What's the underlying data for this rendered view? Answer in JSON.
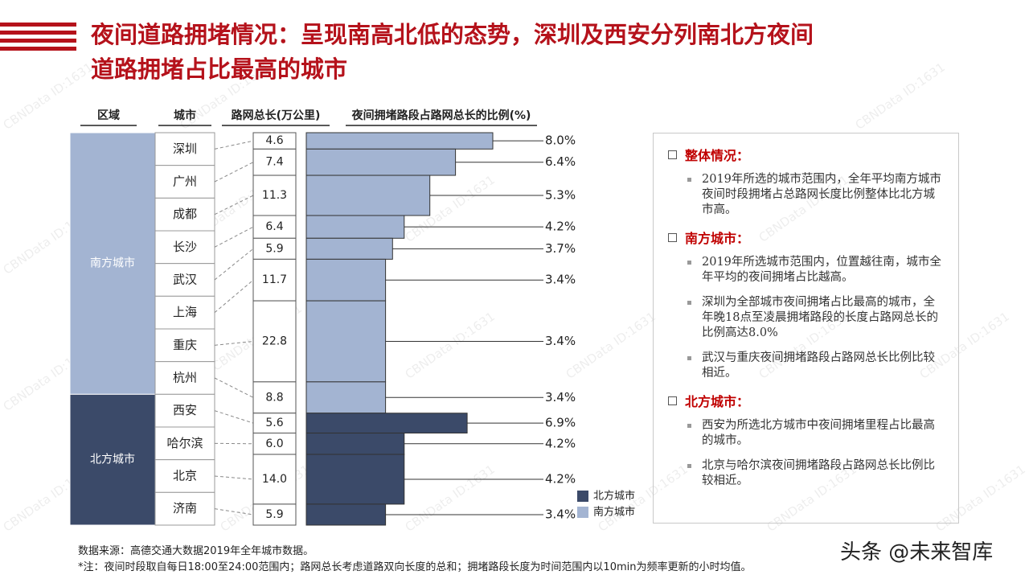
{
  "chart_data": {
    "type": "bar",
    "title_lines": [
      "夜间道路拥堵情况：呈现南高北低的态势，深圳及西安分列南北方夜间",
      "道路拥堵占比最高的城市"
    ],
    "headers": [
      "区域",
      "城市",
      "路网总长(万公里)",
      "夜间拥堵路段占路网总长的比例(%)"
    ],
    "bar_outline": "#333333",
    "regions": [
      {
        "name": "南方城市",
        "color": "#a3b4d2",
        "cities": [
          "深圳",
          "广州",
          "成都",
          "长沙",
          "武汉",
          "上海",
          "重庆",
          "杭州"
        ],
        "road_length": [
          4.6,
          7.4,
          11.3,
          6.4,
          5.9,
          11.7,
          22.8,
          8.8
        ],
        "road_length_labels": [
          "4.6",
          "7.4",
          "11.3",
          "6.4",
          "5.9",
          "11.7",
          "22.8",
          "8.8"
        ],
        "values": [
          8.0,
          6.4,
          5.3,
          4.2,
          3.7,
          3.4,
          3.4,
          3.4
        ],
        "value_labels": [
          "8.0%",
          "6.4%",
          "5.3%",
          "4.2%",
          "3.7%",
          "3.4%",
          "3.4%",
          "3.4%"
        ]
      },
      {
        "name": "北方城市",
        "color": "#3b4a69",
        "cities": [
          "西安",
          "哈尔滨",
          "北京",
          "济南"
        ],
        "road_length": [
          5.6,
          6.0,
          14.0,
          5.9
        ],
        "road_length_labels": [
          "5.6",
          "6.0",
          "14.0",
          "5.9"
        ],
        "values": [
          6.9,
          4.2,
          4.2,
          3.4
        ],
        "value_labels": [
          "6.9%",
          "4.2%",
          "4.2%",
          "3.4%"
        ]
      }
    ],
    "sections": [
      {
        "heading": "整体情况：",
        "items": [
          "2019年所选的城市范围内，全年平均南方城市夜间时段拥堵占总路网长度比例整体比北方城市高。"
        ]
      },
      {
        "heading": "南方城市：",
        "items": [
          "2019年所选城市范围内，位置越往南，城市全年平均的夜间拥堵占比越高。",
          "深圳为全部城市夜间拥堵占比最高的城市，全年晚18点至凌晨拥堵路段的长度占路网总长的比例高达8.0%",
          "武汉与重庆夜间拥堵路段占路网总长比例比较相近。"
        ]
      },
      {
        "heading": "北方城市：",
        "items": [
          "西安为所选北方城市中夜间拥堵里程占比最高的城市。",
          "北京与哈尔滨夜间拥堵路段占路网总长比例比较相近。"
        ]
      }
    ],
    "source": "数据来源：高德交通大数据2019年全年城市数据。",
    "note": "*注：夜间时段取自每日18:00至24:00范围内；路网总长考虑道路双向长度的总和；拥堵路段长度为时间范围内以10min为频率更新的小时均值。",
    "watermark": "CBNData ID:1631",
    "credit": "头条 @未来智库"
  }
}
